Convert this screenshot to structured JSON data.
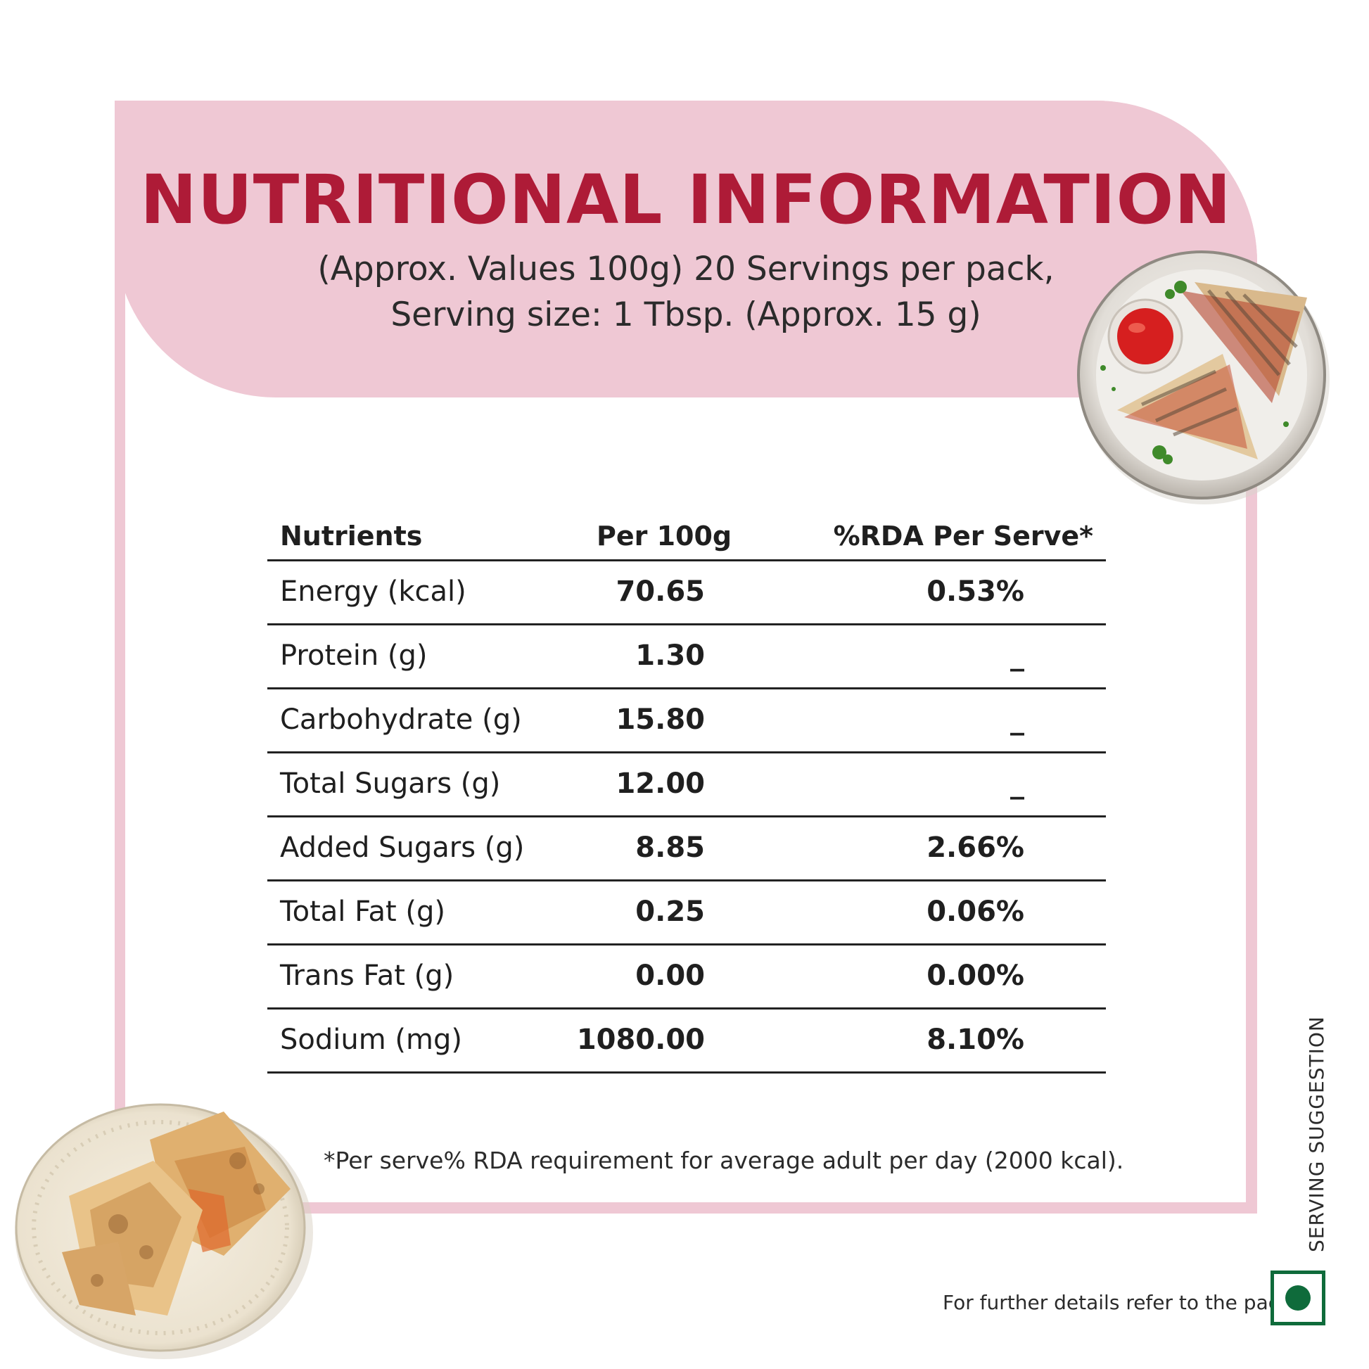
{
  "title": "NUTRITIONAL INFORMATION",
  "subtitle_line1": "(Approx. Values 100g) 20 Servings per pack,",
  "subtitle_line2": "Serving size: 1 Tbsp. (Approx. 15 g)",
  "table": {
    "headers": [
      "Nutrients",
      "Per 100g",
      "%RDA Per Serve*"
    ],
    "rows": [
      {
        "nutrient": "Energy (kcal)",
        "per100g": "70.65",
        "rda": "0.53%"
      },
      {
        "nutrient": "Protein (g)",
        "per100g": "1.30",
        "rda": "_"
      },
      {
        "nutrient": "Carbohydrate (g)",
        "per100g": "15.80",
        "rda": "_"
      },
      {
        "nutrient": "Total Sugars (g)",
        "per100g": "12.00",
        "rda": "_"
      },
      {
        "nutrient": "Added Sugars (g)",
        "per100g": "8.85",
        "rda": "2.66%"
      },
      {
        "nutrient": "Total Fat (g)",
        "per100g": "0.25",
        "rda": "0.06%"
      },
      {
        "nutrient": "Trans Fat (g)",
        "per100g": "0.00",
        "rda": "0.00%"
      },
      {
        "nutrient": "Sodium (mg)",
        "per100g": "1080.00",
        "rda": "8.10%"
      }
    ]
  },
  "footnote": "*Per serve% RDA requirement for average adult per day (2000 kcal).",
  "further_details": "For further details refer to the pack.",
  "serving_suggestion": "SERVING SUGGESTION",
  "colors": {
    "accent_red": "#ae1b37",
    "header_pink": "#efc8d4",
    "veg_green": "#0f6b3b"
  },
  "images": [
    "sandwich-plate-image",
    "wraps-plate-image"
  ],
  "icons": [
    "veg-mark-icon"
  ]
}
